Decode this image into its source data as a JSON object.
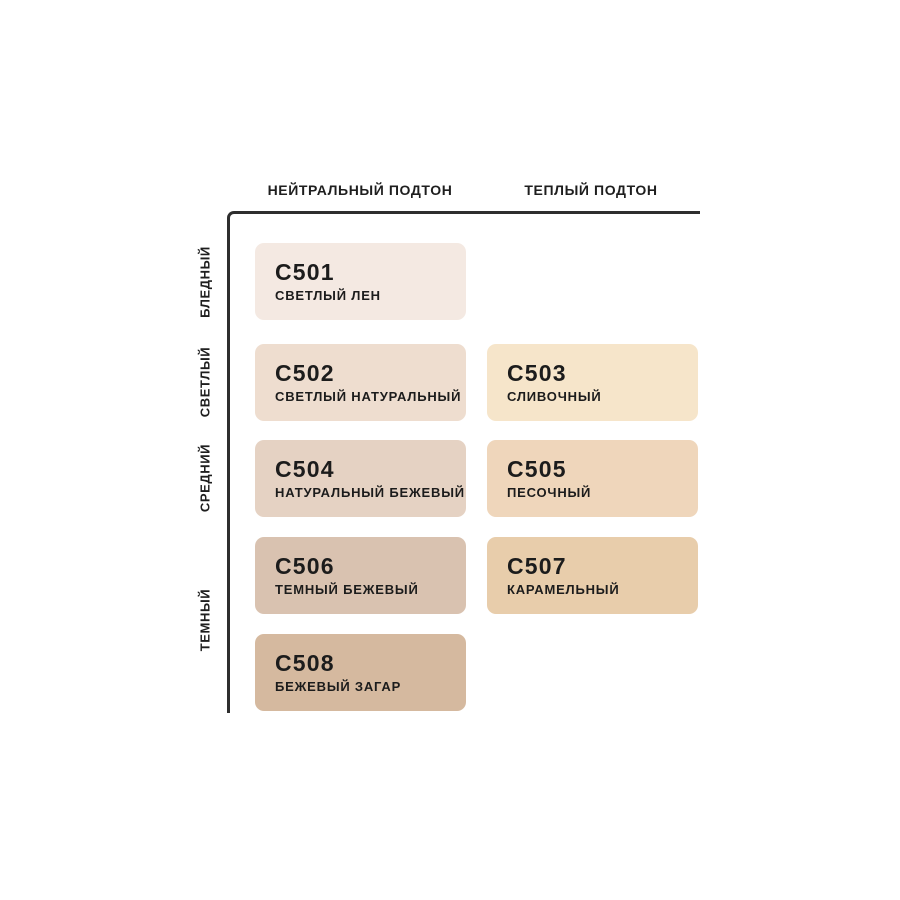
{
  "matrix": {
    "columns": [
      {
        "label": "НЕЙТРАЛЬНЫЙ ПОДТОН"
      },
      {
        "label": "ТЕПЛЫЙ ПОДТОН"
      }
    ],
    "rows": [
      {
        "label": "БЛЕДНЫЙ"
      },
      {
        "label": "СВЕТЛЫЙ"
      },
      {
        "label": "СРЕДНИЙ"
      },
      {
        "label": "ТЕМНЫЙ"
      }
    ]
  },
  "swatches": [
    {
      "code": "C501",
      "name": "СВЕТЛЫЙ ЛЕН",
      "color": "#f4e9e2",
      "row": "БЛЕДНЫЙ",
      "column": "НЕЙТРАЛЬНЫЙ ПОДТОН"
    },
    {
      "code": "C502",
      "name": "СВЕТЛЫЙ НАТУРАЛЬНЫЙ",
      "color": "#eeddcf",
      "row": "СВЕТЛЫЙ",
      "column": "НЕЙТРАЛЬНЫЙ ПОДТОН"
    },
    {
      "code": "C503",
      "name": "СЛИВОЧНЫЙ",
      "color": "#f6e5ca",
      "row": "СВЕТЛЫЙ",
      "column": "ТЕПЛЫЙ ПОДТОН"
    },
    {
      "code": "C504",
      "name": "НАТУРАЛЬНЫЙ БЕЖЕВЫЙ",
      "color": "#e5d2c3",
      "row": "СРЕДНИЙ",
      "column": "НЕЙТРАЛЬНЫЙ ПОДТОН"
    },
    {
      "code": "C505",
      "name": "ПЕСОЧНЫЙ",
      "color": "#efd6bb",
      "row": "СРЕДНИЙ",
      "column": "ТЕПЛЫЙ ПОДТОН"
    },
    {
      "code": "C506",
      "name": "ТЕМНЫЙ БЕЖЕВЫЙ",
      "color": "#d9c2b0",
      "row": "ТЕМНЫЙ",
      "column": "НЕЙТРАЛЬНЫЙ ПОДТОН"
    },
    {
      "code": "C507",
      "name": "КАРАМЕЛЬНЫЙ",
      "color": "#e8cdab",
      "row": "ТЕМНЫЙ",
      "column": "ТЕПЛЫЙ ПОДТОН"
    },
    {
      "code": "C508",
      "name": "БЕЖЕВЫЙ ЗАГАР",
      "color": "#d5b99f",
      "row": "ТЕМНЫЙ",
      "column": "НЕЙТРАЛЬНЫЙ ПОДТОН"
    }
  ],
  "colors": {
    "axis": "#2e2e2e",
    "text": "#1c1c1c",
    "background": "#ffffff"
  },
  "chart_data": {
    "type": "heatmap",
    "title": "",
    "x_categories": [
      "НЕЙТРАЛЬНЫЙ ПОДТОН",
      "ТЕПЛЫЙ ПОДТОН"
    ],
    "y_categories": [
      "БЛЕДНЫЙ",
      "СВЕТЛЫЙ",
      "СРЕДНИЙ",
      "ТЕМНЫЙ"
    ],
    "legend_position": "none",
    "grid": false,
    "cells": [
      {
        "x": "НЕЙТРАЛЬНЫЙ ПОДТОН",
        "y": "БЛЕДНЫЙ",
        "label": "C501 СВЕТЛЫЙ ЛЕН",
        "color": "#f4e9e2"
      },
      {
        "x": "НЕЙТРАЛЬНЫЙ ПОДТОН",
        "y": "СВЕТЛЫЙ",
        "label": "C502 СВЕТЛЫЙ НАТУРАЛЬНЫЙ",
        "color": "#eeddcf"
      },
      {
        "x": "ТЕПЛЫЙ ПОДТОН",
        "y": "СВЕТЛЫЙ",
        "label": "C503 СЛИВОЧНЫЙ",
        "color": "#f6e5ca"
      },
      {
        "x": "НЕЙТРАЛЬНЫЙ ПОДТОН",
        "y": "СРЕДНИЙ",
        "label": "C504 НАТУРАЛЬНЫЙ БЕЖЕВЫЙ",
        "color": "#e5d2c3"
      },
      {
        "x": "ТЕПЛЫЙ ПОДТОН",
        "y": "СРЕДНИЙ",
        "label": "C505 ПЕСОЧНЫЙ",
        "color": "#efd6bb"
      },
      {
        "x": "НЕЙТРАЛЬНЫЙ ПОДТОН",
        "y": "ТЕМНЫЙ",
        "label": "C506 ТЕМНЫЙ БЕЖЕВЫЙ",
        "color": "#d9c2b0"
      },
      {
        "x": "ТЕПЛЫЙ ПОДТОН",
        "y": "ТЕМНЫЙ",
        "label": "C507 КАРАМЕЛЬНЫЙ",
        "color": "#e8cdab"
      },
      {
        "x": "НЕЙТРАЛЬНЫЙ ПОДТОН",
        "y": "ТЕМНЫЙ",
        "label": "C508 БЕЖЕВЫЙ ЗАГАР",
        "color": "#d5b99f"
      }
    ]
  }
}
